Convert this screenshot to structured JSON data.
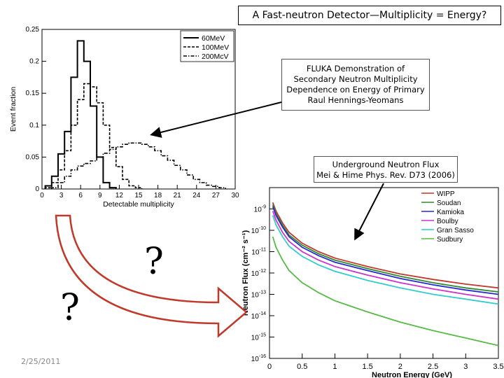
{
  "slide": {
    "title": "A Fast-neutron Detector—Multiplicity = Energy?",
    "date": "2/25/2011",
    "question_mark_1": "?",
    "question_mark_2": "?"
  },
  "callouts": {
    "fluka": [
      "FLUKA Demonstration of",
      "Secondary Neutron Multiplicity",
      "Dependence on Energy of Primary",
      "Raul Hennings-Yeomans"
    ],
    "underground": [
      "Underground Neutron Flux",
      "Mei & Hime Phys. Rev. D73 (2006)"
    ]
  },
  "chart_data": [
    {
      "type": "line",
      "xlabel": "Detectable multiplicity",
      "ylabel": "Event fraction",
      "xlim": [
        0,
        30
      ],
      "ylim": [
        0,
        0.25
      ],
      "xticks": [
        "0",
        "3",
        "6",
        "9",
        "12",
        "15",
        "18",
        "21",
        "24",
        "27",
        "30"
      ],
      "yticks": [
        "0",
        "0.05",
        "0.1",
        "0.15",
        "0.2",
        "0.25"
      ],
      "legend_position": "top-right",
      "series": [
        {
          "name": "60MeV",
          "style": "solid",
          "x": [
            1,
            2,
            3,
            4,
            5,
            6,
            7,
            8,
            9,
            10,
            11
          ],
          "values": [
            0.005,
            0.02,
            0.055,
            0.09,
            0.175,
            0.232,
            0.2,
            0.13,
            0.05,
            0.01,
            0.002
          ]
        },
        {
          "name": "100MeV",
          "style": "dashed",
          "x": [
            1,
            2,
            3,
            4,
            5,
            6,
            7,
            8,
            9,
            10,
            11,
            12,
            13,
            14,
            15
          ],
          "values": [
            0.002,
            0.01,
            0.03,
            0.06,
            0.1,
            0.14,
            0.165,
            0.16,
            0.135,
            0.1,
            0.065,
            0.035,
            0.015,
            0.005,
            0.002
          ]
        },
        {
          "name": "200McV",
          "style": "dash-dot",
          "x": [
            2,
            3,
            4,
            5,
            6,
            7,
            8,
            9,
            10,
            11,
            12,
            13,
            14,
            15,
            16,
            17,
            18,
            19,
            20,
            21,
            22,
            23,
            24,
            25,
            26,
            27,
            28
          ],
          "values": [
            0.002,
            0.01,
            0.02,
            0.03,
            0.036,
            0.04,
            0.044,
            0.05,
            0.056,
            0.062,
            0.066,
            0.07,
            0.072,
            0.072,
            0.07,
            0.066,
            0.06,
            0.052,
            0.045,
            0.037,
            0.03,
            0.022,
            0.015,
            0.01,
            0.006,
            0.004,
            0.002
          ]
        }
      ]
    },
    {
      "type": "line",
      "xlabel": "Neutron Energy (GeV)",
      "ylabel": "Neutron Flux (cm⁻² s⁻¹)",
      "xlim": [
        0,
        3.5
      ],
      "ylim": [
        1e-16,
        1e-08
      ],
      "y_scale": "log",
      "xticks": [
        "0",
        "0.5",
        "1",
        "1.5",
        "2",
        "2.5",
        "3",
        "3.5"
      ],
      "yticks": [
        "10-16",
        "10-15",
        "10-14",
        "10-13",
        "10-12",
        "10-11",
        "10-10",
        "10-9"
      ],
      "legend_position": "top-right",
      "series": [
        {
          "name": "WIPP",
          "color": "#c0392b",
          "x": [
            0.05,
            0.1,
            0.2,
            0.3,
            0.5,
            0.75,
            1.0,
            1.5,
            2.0,
            2.5,
            3.0,
            3.5
          ],
          "values": [
            2e-09,
            8e-10,
            2.2e-10,
            8e-11,
            2.5e-11,
            1e-11,
            5e-12,
            2e-12,
            9e-13,
            5e-13,
            3e-13,
            2e-13
          ]
        },
        {
          "name": "Soudan",
          "color": "#2e8b2e",
          "x": [
            0.05,
            0.1,
            0.2,
            0.3,
            0.5,
            0.75,
            1.0,
            1.5,
            2.0,
            2.5,
            3.0,
            3.5
          ],
          "values": [
            1.6e-09,
            6e-10,
            1.7e-10,
            6e-11,
            2e-11,
            8e-12,
            4e-12,
            1.6e-12,
            7e-13,
            3.5e-13,
            2e-13,
            1.3e-13
          ]
        },
        {
          "name": "Kamioka",
          "color": "#2929d0",
          "x": [
            0.05,
            0.1,
            0.2,
            0.3,
            0.5,
            0.75,
            1.0,
            1.5,
            2.0,
            2.5,
            3.0,
            3.5
          ],
          "values": [
            1.3e-09,
            5e-10,
            1.4e-10,
            5e-11,
            1.6e-11,
            6.5e-12,
            3.2e-12,
            1.3e-12,
            5.5e-13,
            2.8e-13,
            1.6e-13,
            1e-13
          ]
        },
        {
          "name": "Boulby",
          "color": "#cc33cc",
          "x": [
            0.05,
            0.1,
            0.2,
            0.3,
            0.5,
            0.75,
            1.0,
            1.5,
            2.0,
            2.5,
            3.0,
            3.5
          ],
          "values": [
            8e-10,
            3e-10,
            8e-11,
            3e-11,
            1e-11,
            4e-12,
            2e-12,
            8e-13,
            3.5e-13,
            1.8e-13,
            1e-13,
            6e-14
          ]
        },
        {
          "name": "Gran Sasso",
          "color": "#33cccc",
          "x": [
            0.05,
            0.1,
            0.2,
            0.3,
            0.5,
            0.75,
            1.0,
            1.5,
            2.0,
            2.5,
            3.0,
            3.5
          ],
          "values": [
            5e-10,
            1.8e-10,
            5e-11,
            1.8e-11,
            6e-12,
            2.4e-12,
            1.2e-12,
            4.5e-13,
            2e-13,
            1e-13,
            6e-14,
            3.5e-14
          ]
        },
        {
          "name": "Sudbury",
          "color": "#55bb44",
          "x": [
            0.05,
            0.1,
            0.2,
            0.3,
            0.5,
            0.75,
            1.0,
            1.5,
            2.0,
            2.5,
            3.0,
            3.5
          ],
          "values": [
            5e-11,
            1.6e-11,
            4e-12,
            1.3e-12,
            3.5e-13,
            1.2e-13,
            5e-14,
            1.5e-14,
            5e-15,
            2e-15,
            9e-16,
            4e-16
          ]
        }
      ]
    }
  ]
}
